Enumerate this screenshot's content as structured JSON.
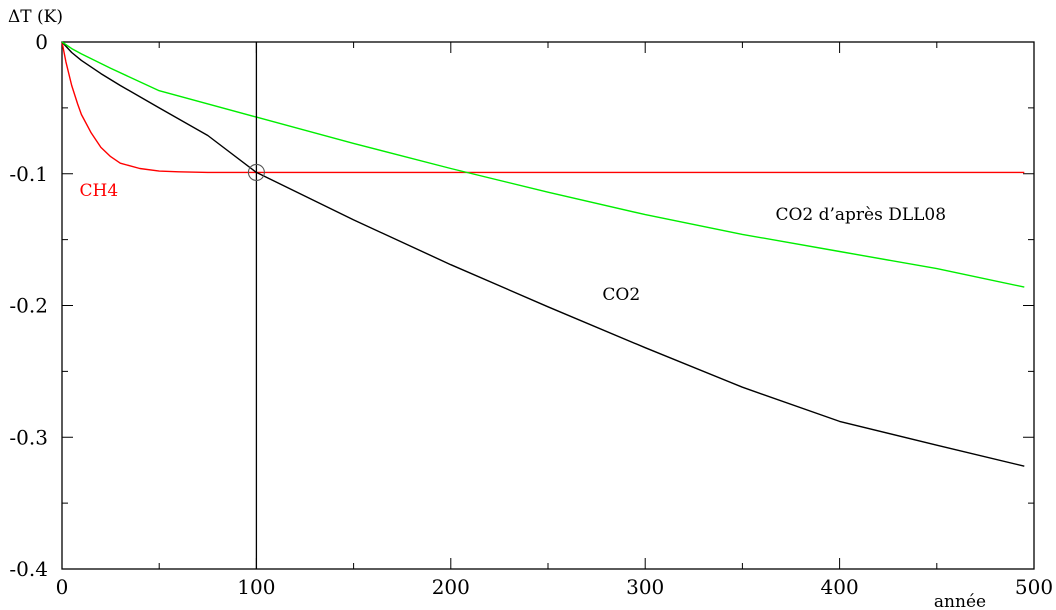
{
  "chart_data": {
    "type": "line",
    "ylabel": "ΔT (K)",
    "xlabel": "année",
    "xlim": [
      0,
      500
    ],
    "ylim": [
      -0.4,
      0
    ],
    "xticks": [
      0,
      100,
      200,
      300,
      400,
      500
    ],
    "xtick_labels": [
      "0",
      "100",
      "200",
      "300",
      "400",
      "500"
    ],
    "yticks": [
      0,
      -0.1,
      -0.2,
      -0.3,
      -0.4
    ],
    "ytick_labels": [
      "0",
      "-0.1",
      "-0.2",
      "-0.3",
      "-0.4"
    ],
    "grid": false,
    "series": [
      {
        "name": "CH4",
        "color": "#ff0000",
        "x": [
          0,
          2,
          5,
          8,
          10,
          15,
          20,
          25,
          30,
          40,
          50,
          60,
          75,
          100,
          200,
          300,
          400,
          495
        ],
        "y": [
          0,
          -0.015,
          -0.033,
          -0.047,
          -0.055,
          -0.069,
          -0.08,
          -0.087,
          -0.092,
          -0.096,
          -0.098,
          -0.0985,
          -0.099,
          -0.099,
          -0.099,
          -0.099,
          -0.099,
          -0.099
        ]
      },
      {
        "name": "CO2",
        "color": "#000000",
        "x": [
          0,
          5,
          10,
          20,
          30,
          50,
          75,
          100,
          150,
          200,
          250,
          300,
          350,
          400,
          450,
          495
        ],
        "y": [
          0,
          -0.008,
          -0.014,
          -0.024,
          -0.033,
          -0.05,
          -0.071,
          -0.099,
          -0.135,
          -0.169,
          -0.201,
          -0.232,
          -0.262,
          -0.288,
          -0.306,
          -0.322
        ]
      },
      {
        "name": "CO2 d'après DLL08",
        "color": "#00ee00",
        "x": [
          0,
          5,
          10,
          25,
          50,
          100,
          150,
          200,
          250,
          300,
          350,
          400,
          450,
          495
        ],
        "y": [
          0,
          -0.005,
          -0.009,
          -0.02,
          -0.037,
          -0.057,
          -0.077,
          -0.096,
          -0.114,
          -0.131,
          -0.146,
          -0.159,
          -0.172,
          -0.186
        ]
      }
    ],
    "vertical_line_x": 100,
    "marker": {
      "x": 100,
      "y": -0.099
    },
    "annotations": [
      {
        "text": "CH4",
        "x": 9,
        "y": -0.117,
        "color": "#ff0000"
      },
      {
        "text": "CO2",
        "x": 278,
        "y": -0.196,
        "color": "#000000"
      },
      {
        "text": "CO2 d’après DLL08",
        "x": 367,
        "y": -0.135,
        "color": "#000000"
      }
    ]
  }
}
